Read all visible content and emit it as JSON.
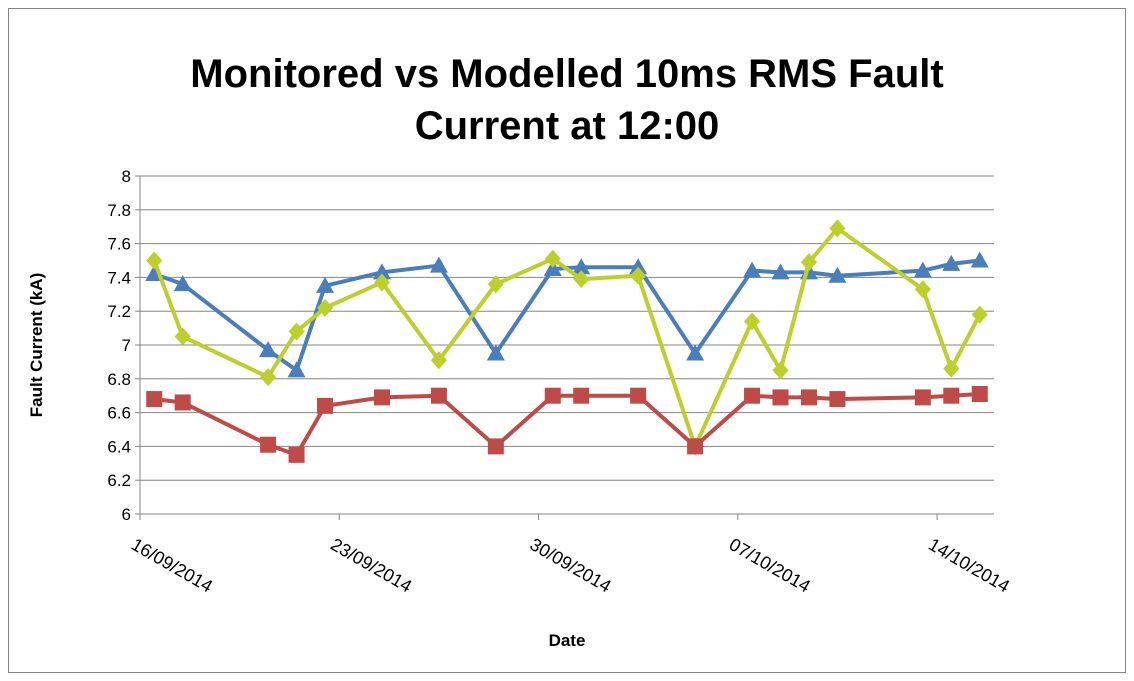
{
  "chart_data": {
    "type": "line",
    "title": "Monitored vs Modelled 10ms RMS Fault Current at 12:00",
    "xlabel": "Date",
    "ylabel": "Fault Current (kA)",
    "x": [
      "16/09/2014",
      "17/09/2014",
      "20/09/2014",
      "21/09/2014",
      "22/09/2014",
      "24/09/2014",
      "26/09/2014",
      "28/09/2014",
      "30/09/2014",
      "01/10/2014",
      "03/10/2014",
      "05/10/2014",
      "07/10/2014",
      "08/10/2014",
      "09/10/2014",
      "10/10/2014",
      "13/10/2014",
      "14/10/2014",
      "15/10/2014"
    ],
    "series": [
      {
        "color": "#4a7ebb",
        "marker": "triangle",
        "values": [
          7.42,
          7.36,
          6.97,
          6.85,
          7.35,
          7.43,
          7.47,
          6.95,
          7.45,
          7.46,
          7.46,
          6.95,
          7.44,
          7.43,
          7.43,
          7.41,
          7.44,
          7.48,
          7.5
        ]
      },
      {
        "color": "#bccf2a",
        "marker": "diamond",
        "values": [
          7.5,
          7.05,
          6.81,
          7.08,
          7.22,
          7.37,
          6.91,
          7.36,
          7.51,
          7.39,
          7.41,
          6.4,
          7.14,
          6.85,
          7.49,
          7.69,
          7.33,
          6.86,
          7.18
        ]
      },
      {
        "color": "#be4b48",
        "marker": "square",
        "values": [
          6.68,
          6.66,
          6.41,
          6.35,
          6.64,
          6.69,
          6.7,
          6.4,
          6.7,
          6.7,
          6.7,
          6.4,
          6.7,
          6.69,
          6.69,
          6.68,
          6.69,
          6.7,
          6.71
        ]
      }
    ],
    "xlim": [
      "16/09/2014",
      "16/10/2014"
    ],
    "xticks": [
      "16/09/2014",
      "23/09/2014",
      "30/09/2014",
      "07/10/2014",
      "14/10/2014"
    ],
    "ylim": [
      6,
      8
    ],
    "yticks": [
      6,
      6.2,
      6.4,
      6.6,
      6.8,
      7,
      7.2,
      7.4,
      7.6,
      7.8,
      8
    ],
    "grid": true
  }
}
